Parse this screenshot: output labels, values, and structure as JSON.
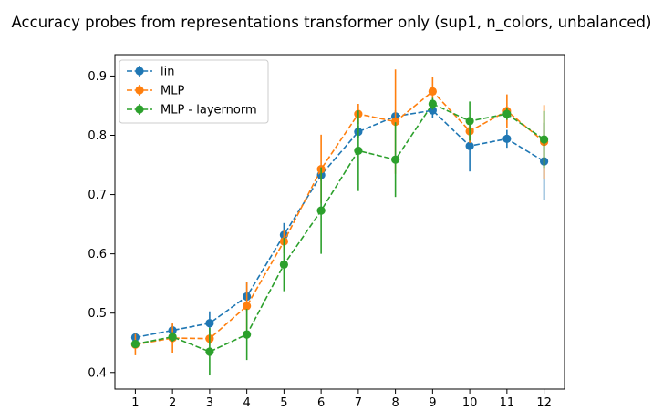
{
  "chart_data": {
    "type": "line",
    "title": "Accuracy probes from representations transformer only (sup1, n_colors, unbalanced)",
    "xlabel": "",
    "ylabel": "",
    "x": [
      1,
      2,
      3,
      4,
      5,
      6,
      7,
      8,
      9,
      10,
      11,
      12
    ],
    "x_ticks": [
      "1",
      "2",
      "3",
      "4",
      "5",
      "6",
      "7",
      "8",
      "9",
      "10",
      "11",
      "12"
    ],
    "xlim": [
      0.45,
      12.55
    ],
    "ylim": [
      0.372,
      0.936
    ],
    "y_ticks": [
      0.4,
      0.5,
      0.6,
      0.7,
      0.8,
      0.9
    ],
    "y_tick_labels": [
      "0.4",
      "0.5",
      "0.6",
      "0.7",
      "0.8",
      "0.9"
    ],
    "grid": false,
    "legend_position": "top-left",
    "series": [
      {
        "name": "lin",
        "color": "#1f77b4",
        "values": [
          0.459,
          0.471,
          0.483,
          0.528,
          0.632,
          0.733,
          0.806,
          0.832,
          0.842,
          0.782,
          0.794,
          0.756
        ],
        "errors": [
          0.005,
          0.01,
          0.02,
          0.025,
          0.02,
          0.01,
          0.01,
          0.01,
          0.012,
          0.043,
          0.015,
          0.065
        ]
      },
      {
        "name": "MLP",
        "color": "#ff7f0e",
        "values": [
          0.447,
          0.458,
          0.457,
          0.512,
          0.621,
          0.743,
          0.836,
          0.823,
          0.874,
          0.807,
          0.841,
          0.789
        ],
        "errors": [
          0.018,
          0.025,
          0.01,
          0.04,
          0.02,
          0.058,
          0.017,
          0.088,
          0.025,
          0.02,
          0.028,
          0.062
        ]
      },
      {
        "name": "MLP - layernorm",
        "color": "#2ca02c",
        "values": [
          0.448,
          0.46,
          0.435,
          0.464,
          0.582,
          0.673,
          0.774,
          0.759,
          0.853,
          0.824,
          0.836,
          0.793
        ],
        "errors": [
          0.005,
          0.008,
          0.04,
          0.043,
          0.045,
          0.073,
          0.068,
          0.063,
          0.01,
          0.033,
          0.01,
          0.048
        ]
      }
    ]
  }
}
